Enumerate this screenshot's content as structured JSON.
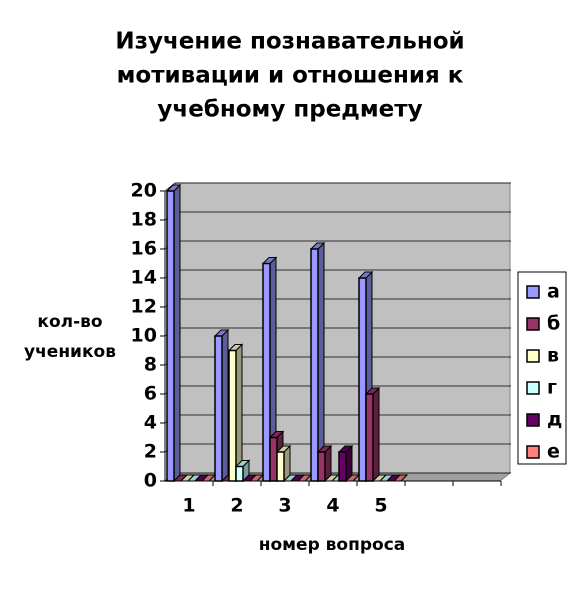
{
  "chart_data": {
    "type": "bar3d",
    "title": [
      "Изучение познавательной",
      "мотивации и отношения к",
      "учебному предмету"
    ],
    "y_label": [
      "кол-во",
      "учеников"
    ],
    "x_label": "номер вопроса",
    "categories": [
      "1",
      "2",
      "3",
      "4",
      "5",
      null,
      null
    ],
    "series": [
      {
        "name": "а",
        "color": "#9999ff",
        "values": [
          20,
          10,
          15,
          16,
          14,
          null,
          null
        ]
      },
      {
        "name": "б",
        "color": "#993366",
        "values": [
          0,
          0,
          3,
          2,
          6,
          null,
          null
        ]
      },
      {
        "name": "в",
        "color": "#ffffcc",
        "values": [
          0,
          9,
          2,
          0,
          0,
          null,
          null
        ]
      },
      {
        "name": "г",
        "color": "#ccffff",
        "values": [
          0,
          1,
          0,
          0,
          0,
          null,
          null
        ]
      },
      {
        "name": "д",
        "color": "#660066",
        "values": [
          0,
          0,
          0,
          2,
          0,
          null,
          null
        ]
      },
      {
        "name": "е",
        "color": "#ff8080",
        "values": [
          0,
          0,
          0,
          0,
          0,
          null,
          null
        ]
      }
    ],
    "ylim": [
      0,
      20
    ],
    "yticks": [
      0,
      2,
      4,
      6,
      8,
      10,
      12,
      14,
      16,
      18,
      20
    ],
    "grid": true,
    "legend": "right"
  }
}
